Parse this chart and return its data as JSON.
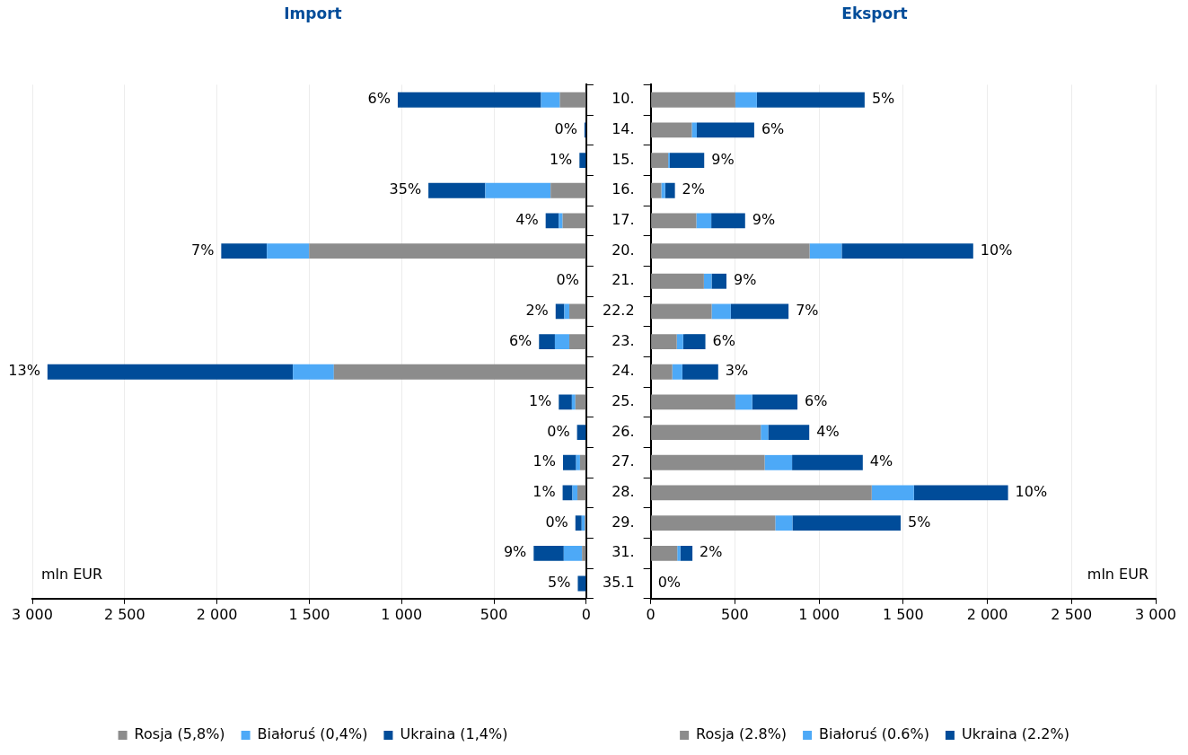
{
  "chart_data": [
    {
      "type": "bar",
      "title": "Import",
      "orientation": "horizontal",
      "stacked": true,
      "grid": "x",
      "legend": "bottom",
      "tick_labels": "x",
      "categories": [
        "10.",
        "14.",
        "15.",
        "16.",
        "17.",
        "20.",
        "21.",
        "22.2",
        "23.",
        "24.",
        "25.",
        "26.",
        "27.",
        "28.",
        "29.",
        "31.",
        "35.1"
      ],
      "series": [
        {
          "name": "Rosja (5,8%)",
          "color": "#8c8c8c",
          "values": [
            143,
            0,
            0,
            193,
            128,
            1501,
            0,
            92,
            92,
            1367,
            59,
            0,
            34,
            48,
            8,
            23,
            0
          ]
        },
        {
          "name": "Białoruś (0,4%)",
          "color": "#4da9f7",
          "values": [
            102,
            0,
            null,
            354,
            21,
            229,
            0,
            27,
            78,
            222,
            19,
            0,
            21,
            27,
            17,
            99,
            0
          ]
        },
        {
          "name": "Ukraina (1,4%)",
          "color": "#004c99",
          "values": [
            776,
            10,
            37,
            308,
            71,
            247,
            null,
            47,
            86,
            1329,
            71,
            50,
            71,
            53,
            34,
            163,
            46
          ]
        }
      ],
      "xlim": [
        3000,
        0
      ],
      "xticks": [
        {
          "value": 3000,
          "label": "3 000"
        },
        {
          "value": 2500,
          "label": "2 500"
        },
        {
          "value": 2000,
          "label": "2 000"
        },
        {
          "value": 1500,
          "label": "1 500"
        },
        {
          "value": 1000,
          "label": "1 000"
        },
        {
          "value": 500,
          "label": "500"
        },
        {
          "value": 0,
          "label": "0"
        }
      ],
      "annotations": [
        "mln EUR",
        {
          "text": "6%",
          "x": 1021,
          "y": "10."
        },
        {
          "text": "0%",
          "x": 10,
          "y": "14."
        },
        {
          "text": "1%",
          "x": 37,
          "y": "15."
        },
        {
          "text": "35%",
          "x": 855,
          "y": "16."
        },
        {
          "text": "4%",
          "x": 220,
          "y": "17."
        },
        {
          "text": "7%",
          "x": 1977,
          "y": "20."
        },
        {
          "text": "0%",
          "x": 0,
          "y": "21."
        },
        {
          "text": "2%",
          "x": 166,
          "y": "22.2"
        },
        {
          "text": "6%",
          "x": 256,
          "y": "23."
        },
        {
          "text": "13%",
          "x": 2918,
          "y": "24."
        },
        {
          "text": "1%",
          "x": 149,
          "y": "25."
        },
        {
          "text": "0%",
          "x": 50,
          "y": "26."
        },
        {
          "text": "1%",
          "x": 126,
          "y": "27."
        },
        {
          "text": "1%",
          "x": 128,
          "y": "28."
        },
        {
          "text": "0%",
          "x": 59,
          "y": "29."
        },
        {
          "text": "9%",
          "x": 285,
          "y": "31."
        },
        {
          "text": "5%",
          "x": 46,
          "y": "35.1"
        }
      ]
    },
    {
      "type": "bar",
      "title": "Eksport",
      "orientation": "horizontal",
      "stacked": true,
      "grid": "x",
      "legend": "bottom",
      "categories": [
        "10.",
        "14.",
        "15.",
        "16.",
        "17.",
        "20.",
        "21.",
        "22.2",
        "23.",
        "24.",
        "25.",
        "26.",
        "27.",
        "28.",
        "29.",
        "31.",
        "35.1"
      ],
      "series": [
        {
          "name": "Rosja (2.8%)",
          "color": "#8c8c8c",
          "values": [
            503,
            244,
            104,
            63,
            271,
            944,
            316,
            362,
            155,
            128,
            503,
            654,
            677,
            1313,
            740,
            158,
            0
          ]
        },
        {
          "name": "Białoruś (0.6%)",
          "color": "#4da9f7",
          "values": [
            128,
            30,
            10,
            23,
            89,
            191,
            46,
            114,
            38,
            60,
            100,
            44,
            163,
            251,
            102,
            18,
            0
          ]
        },
        {
          "name": "Ukraina (2.2%)",
          "color": "#004c99",
          "values": [
            640,
            341,
            204,
            58,
            201,
            781,
            88,
            343,
            132,
            213,
            269,
            244,
            420,
            559,
            643,
            72,
            0
          ]
        }
      ],
      "xlim": [
        0,
        3000
      ],
      "xticks": [
        {
          "value": 0,
          "label": "0"
        },
        {
          "value": 500,
          "label": "500"
        },
        {
          "value": 1000,
          "label": "1 000"
        },
        {
          "value": 1500,
          "label": "1 500"
        },
        {
          "value": 2000,
          "label": "2 000"
        },
        {
          "value": 2500,
          "label": "2 500"
        },
        {
          "value": 3000,
          "label": "3 000"
        }
      ],
      "annotations": [
        "mln EUR",
        {
          "text": "5%",
          "x": 1271,
          "y": "10."
        },
        {
          "text": "6%",
          "x": 615,
          "y": "14."
        },
        {
          "text": "9%",
          "x": 318,
          "y": "15."
        },
        {
          "text": "2%",
          "x": 144,
          "y": "16."
        },
        {
          "text": "9%",
          "x": 561,
          "y": "17."
        },
        {
          "text": "10%",
          "x": 1916,
          "y": "20."
        },
        {
          "text": "9%",
          "x": 450,
          "y": "21."
        },
        {
          "text": "7%",
          "x": 819,
          "y": "22.2"
        },
        {
          "text": "6%",
          "x": 325,
          "y": "23."
        },
        {
          "text": "3%",
          "x": 401,
          "y": "24."
        },
        {
          "text": "6%",
          "x": 872,
          "y": "25."
        },
        {
          "text": "4%",
          "x": 942,
          "y": "26."
        },
        {
          "text": "4%",
          "x": 1260,
          "y": "27."
        },
        {
          "text": "10%",
          "x": 2123,
          "y": "28."
        },
        {
          "text": "5%",
          "x": 1485,
          "y": "29."
        },
        {
          "text": "2%",
          "x": 248,
          "y": "31."
        },
        {
          "text": "0%",
          "x": 0,
          "y": "35.1"
        }
      ]
    }
  ]
}
